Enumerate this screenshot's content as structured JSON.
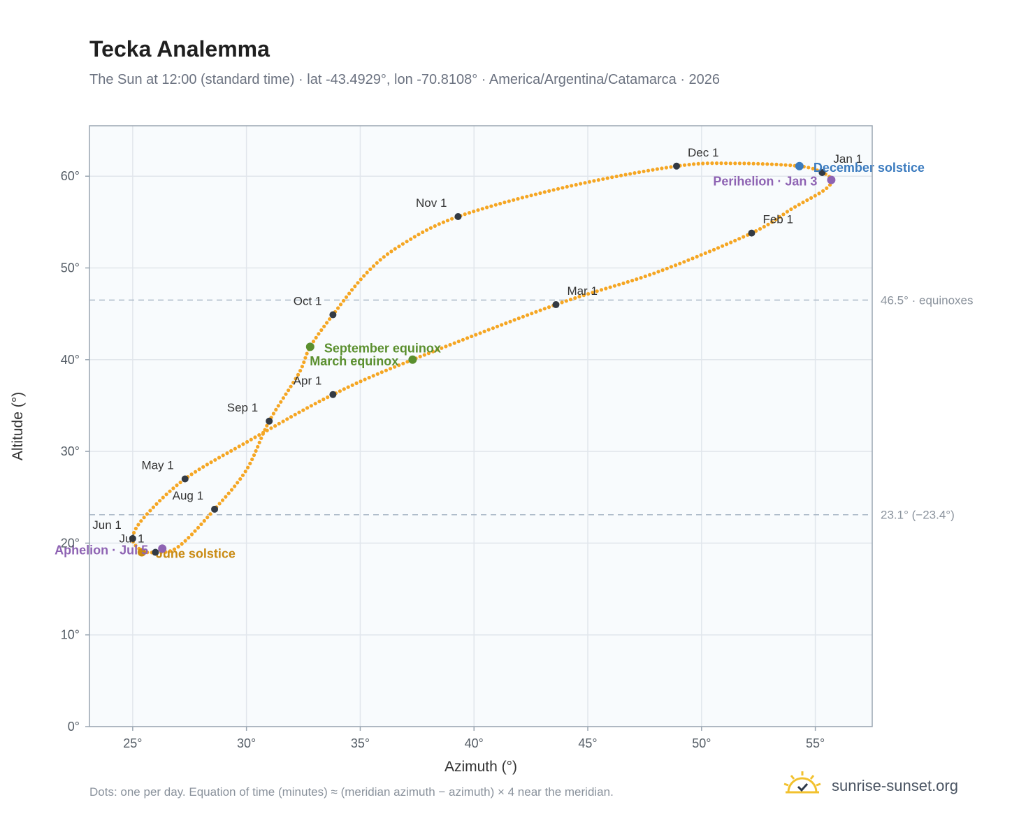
{
  "header": {
    "title": "Tecka Analemma",
    "subtitle": "The Sun at 12:00 (standard time) · lat -43.4929°, lon -70.8108° · America/Argentina/Catamarca · 2026"
  },
  "footer": {
    "note": "Dots: one per day. Equation of time (minutes) ≈ (meridian azimuth − azimuth) × 4 near the meridian.",
    "brand": "sunrise-sunset.org"
  },
  "colors": {
    "curve": "#f5a623",
    "month_marker": "#333a44",
    "equinox": "#5a8f2e",
    "solstice_dec": "#3b7bbf",
    "solstice_jun": "#c98a12",
    "perihelion": "#8e63b3",
    "ref_line": "#a9b7c6",
    "plot_bg": "#f8fbfd",
    "grid": "#e1e6ec",
    "frame": "#9aa6b2"
  },
  "chart_data": {
    "type": "scatter",
    "title": "Tecka Analemma",
    "xlabel": "Azimuth (°)",
    "ylabel": "Altitude (°)",
    "xlim": [
      23.1,
      57.5
    ],
    "ylim": [
      0,
      65.5
    ],
    "x_ticks": [
      {
        "value": 25,
        "label": "25°"
      },
      {
        "value": 30,
        "label": "30°"
      },
      {
        "value": 35,
        "label": "35°"
      },
      {
        "value": 40,
        "label": "40°"
      },
      {
        "value": 45,
        "label": "45°"
      },
      {
        "value": 50,
        "label": "50°"
      },
      {
        "value": 55,
        "label": "55°"
      }
    ],
    "y_ticks": [
      {
        "value": 0,
        "label": "0°"
      },
      {
        "value": 10,
        "label": "10°"
      },
      {
        "value": 20,
        "label": "20°"
      },
      {
        "value": 30,
        "label": "30°"
      },
      {
        "value": 40,
        "label": "40°"
      },
      {
        "value": 50,
        "label": "50°"
      },
      {
        "value": 60,
        "label": "60°"
      }
    ],
    "grid": true,
    "reference_lines": [
      {
        "y": 46.5,
        "label": "46.5° · equinoxes"
      },
      {
        "y": 23.1,
        "label": "23.1° (−23.4°)"
      }
    ],
    "path_knots": [
      [
        54.3,
        61.1
      ],
      [
        55.3,
        60.4
      ],
      [
        55.7,
        59.6
      ],
      [
        55.4,
        58.5
      ],
      [
        54.0,
        56.5
      ],
      [
        52.2,
        53.8
      ],
      [
        48.0,
        49.5
      ],
      [
        43.6,
        46.0
      ],
      [
        37.3,
        40.0
      ],
      [
        33.8,
        36.2
      ],
      [
        30.0,
        31.0
      ],
      [
        27.3,
        27.0
      ],
      [
        25.5,
        22.8
      ],
      [
        25.0,
        20.5
      ],
      [
        25.4,
        19.2
      ],
      [
        26.0,
        19.0
      ],
      [
        27.0,
        19.6
      ],
      [
        28.6,
        23.7
      ],
      [
        30.0,
        28.0
      ],
      [
        31.0,
        33.3
      ],
      [
        32.3,
        38.5
      ],
      [
        32.8,
        41.4
      ],
      [
        33.8,
        44.9
      ],
      [
        35.3,
        49.5
      ],
      [
        36.8,
        52.5
      ],
      [
        39.3,
        55.6
      ],
      [
        44.0,
        58.8
      ],
      [
        48.9,
        61.1
      ],
      [
        51.5,
        61.4
      ],
      [
        54.3,
        61.1
      ]
    ],
    "month_markers": [
      {
        "label": "Jan 1",
        "x": 55.3,
        "y": 60.4,
        "anchor": "start"
      },
      {
        "label": "Feb 1",
        "x": 52.2,
        "y": 53.8,
        "anchor": "start"
      },
      {
        "label": "Mar 1",
        "x": 43.6,
        "y": 46.0,
        "anchor": "start"
      },
      {
        "label": "Apr 1",
        "x": 33.8,
        "y": 36.2,
        "anchor": "end"
      },
      {
        "label": "May 1",
        "x": 27.3,
        "y": 27.0,
        "anchor": "end"
      },
      {
        "label": "Jun 1",
        "x": 25.0,
        "y": 20.5,
        "anchor": "end"
      },
      {
        "label": "Jul 1",
        "x": 26.0,
        "y": 19.0,
        "anchor": "end"
      },
      {
        "label": "Aug 1",
        "x": 28.6,
        "y": 23.7,
        "anchor": "end"
      },
      {
        "label": "Sep 1",
        "x": 31.0,
        "y": 33.3,
        "anchor": "end"
      },
      {
        "label": "Oct 1",
        "x": 33.8,
        "y": 44.9,
        "anchor": "end"
      },
      {
        "label": "Nov 1",
        "x": 39.3,
        "y": 55.6,
        "anchor": "end"
      },
      {
        "label": "Dec 1",
        "x": 48.9,
        "y": 61.1,
        "anchor": "start"
      }
    ],
    "events": [
      {
        "label": "December solstice",
        "x": 54.3,
        "y": 61.1,
        "color_key": "solstice_dec",
        "anchor": "start"
      },
      {
        "label": "Perihelion · Jan 3",
        "x": 55.7,
        "y": 59.6,
        "color_key": "perihelion",
        "anchor": "end"
      },
      {
        "label": "September equinox",
        "x": 32.8,
        "y": 41.4,
        "color_key": "equinox",
        "anchor": "start"
      },
      {
        "label": "March equinox",
        "x": 37.3,
        "y": 40.0,
        "color_key": "equinox",
        "anchor": "end"
      },
      {
        "label": "June solstice",
        "x": 25.4,
        "y": 19.0,
        "color_key": "solstice_jun",
        "anchor": "start"
      },
      {
        "label": "Aphelion · Jul 5",
        "x": 26.3,
        "y": 19.4,
        "color_key": "perihelion",
        "anchor": "end"
      }
    ]
  }
}
